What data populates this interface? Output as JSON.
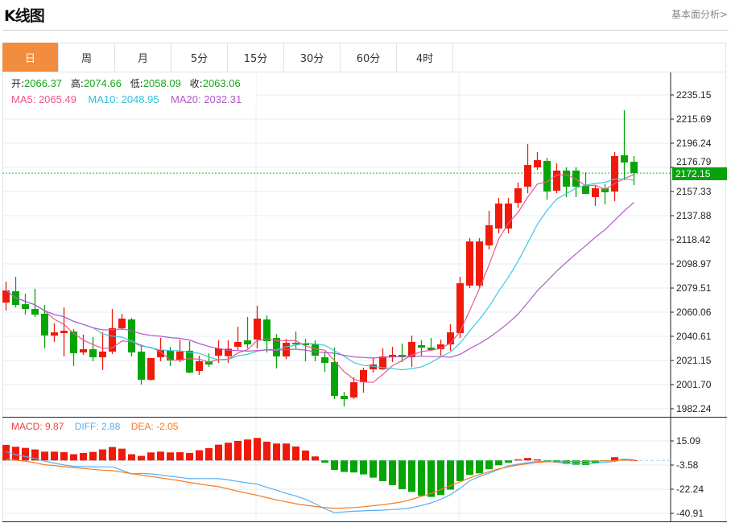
{
  "header": {
    "title": "K线图",
    "link": "基本面分析>"
  },
  "tabs": [
    {
      "label": "日",
      "active": true
    },
    {
      "label": "周"
    },
    {
      "label": "月"
    },
    {
      "label": "5分"
    },
    {
      "label": "15分"
    },
    {
      "label": "30分"
    },
    {
      "label": "60分"
    },
    {
      "label": "4时"
    }
  ],
  "legend": {
    "open_label": "开:",
    "open": "2066.37",
    "high_label": "高:",
    "high": "2074.66",
    "low_label": "低:",
    "low": "2058.09",
    "close_label": "收:",
    "close": "2063.06",
    "ma5": "MA5: 2065.49",
    "ma10": "MA10: 2048.95",
    "ma20": "MA20: 2032.31"
  },
  "macd_legend": {
    "macd": "MACD: 9.87",
    "diff": "DIFF: 2.88",
    "dea": "DEA: -2.05"
  },
  "colors": {
    "up": "#f01a0a",
    "down": "#06a506",
    "ma5": "#f0578a",
    "ma10": "#3cc8de",
    "ma20": "#b25ac8",
    "diff": "#5aaef0",
    "dea": "#f57a1e",
    "accent": "#f28c3e"
  },
  "chart_data": {
    "type": "candlestick",
    "price_ticks": [
      "2235.15",
      "2215.69",
      "2196.24",
      "2176.79",
      "2157.33",
      "2137.88",
      "2118.42",
      "2098.97",
      "2079.51",
      "2060.06",
      "2040.61",
      "2021.15",
      "2001.70",
      "1982.24"
    ],
    "current_price": "2172.15",
    "macd_ticks": [
      "15.09",
      "-3.58",
      "-22.24",
      "-40.91"
    ],
    "ohlc": [
      [
        2067.8,
        2084.7,
        2061.4,
        2077.6
      ],
      [
        2076.9,
        2088.6,
        2063.9,
        2065.9
      ],
      [
        2066.5,
        2075.0,
        2058.1,
        2062.6
      ],
      [
        2062.6,
        2078.9,
        2056.2,
        2058.1
      ],
      [
        2058.8,
        2065.9,
        2030.9,
        2041.3
      ],
      [
        2041.2,
        2051.0,
        2036.1,
        2043.8
      ],
      [
        2043.2,
        2063.9,
        2024.4,
        2045.1
      ],
      [
        2044.5,
        2046.4,
        2016.6,
        2027.0
      ],
      [
        2027.6,
        2041.9,
        2025.7,
        2030.2
      ],
      [
        2030.2,
        2040.0,
        2020.5,
        2023.7
      ],
      [
        2023.7,
        2043.8,
        2013.4,
        2028.3
      ],
      [
        2028.3,
        2062.6,
        2026.3,
        2047.1
      ],
      [
        2047.1,
        2058.8,
        2045.8,
        2054.9
      ],
      [
        2054.2,
        2055.5,
        2024.4,
        2027.6
      ],
      [
        2028.3,
        2034.1,
        2001.7,
        2005.6
      ],
      [
        2005.6,
        2023.1,
        2005.0,
        2023.1
      ],
      [
        2023.7,
        2039.3,
        2020.5,
        2029.6
      ],
      [
        2029.0,
        2032.2,
        2016.6,
        2021.1
      ],
      [
        2021.1,
        2038.0,
        2019.8,
        2028.3
      ],
      [
        2029.0,
        2036.7,
        2010.8,
        2011.4
      ],
      [
        2012.7,
        2025.0,
        2009.5,
        2020.5
      ],
      [
        2020.5,
        2026.9,
        2016.0,
        2017.9
      ],
      [
        2025.0,
        2037.4,
        2019.1,
        2030.9
      ],
      [
        2024.6,
        2037.4,
        2019.1,
        2030.6
      ],
      [
        2032.2,
        2048.4,
        2029.6,
        2036.1
      ],
      [
        2037.4,
        2056.2,
        2030.9,
        2034.1
      ],
      [
        2038.0,
        2065.2,
        2030.9,
        2054.9
      ],
      [
        2054.2,
        2057.5,
        2027.6,
        2036.7
      ],
      [
        2039.3,
        2042.5,
        2014.7,
        2024.4
      ],
      [
        2024.4,
        2038.6,
        2022.4,
        2035.4
      ],
      [
        2035.4,
        2044.5,
        2030.9,
        2034.1
      ],
      [
        2034.8,
        2038.6,
        2020.5,
        2033.5
      ],
      [
        2034.1,
        2037.4,
        2020.5,
        2025.0
      ],
      [
        2023.7,
        2028.3,
        2012.0,
        2019.2
      ],
      [
        2019.8,
        2031.5,
        1990.0,
        1992.6
      ],
      [
        1992.6,
        1995.8,
        1984.2,
        1990.0
      ],
      [
        1991.3,
        2007.6,
        1990.0,
        2003.6
      ],
      [
        2003.6,
        2015.3,
        1995.2,
        2013.4
      ],
      [
        2014.0,
        2023.1,
        2011.4,
        2017.9
      ],
      [
        2014.0,
        2030.9,
        2013.4,
        2024.4
      ],
      [
        2023.7,
        2032.2,
        2019.8,
        2025.7
      ],
      [
        2025.7,
        2034.8,
        2019.8,
        2023.7
      ],
      [
        2023.7,
        2041.2,
        2016.0,
        2036.1
      ],
      [
        2033.5,
        2037.4,
        2025.0,
        2031.5
      ],
      [
        2031.5,
        2039.3,
        2028.9,
        2029.6
      ],
      [
        2030.2,
        2038.0,
        2025.0,
        2034.1
      ],
      [
        2034.1,
        2050.3,
        2029.0,
        2043.8
      ],
      [
        2043.2,
        2088.6,
        2039.3,
        2083.4
      ],
      [
        2081.5,
        2119.7,
        2079.5,
        2117.1
      ],
      [
        2081.5,
        2119.7,
        2079.5,
        2117.1
      ],
      [
        2113.9,
        2141.8,
        2110.6,
        2130.1
      ],
      [
        2127.5,
        2152.1,
        2123.6,
        2147.6
      ],
      [
        2127.5,
        2152.1,
        2123.6,
        2147.6
      ],
      [
        2148.2,
        2164.5,
        2144.3,
        2159.9
      ],
      [
        2161.2,
        2195.6,
        2156.0,
        2178.7
      ],
      [
        2176.8,
        2189.1,
        2174.8,
        2182.6
      ],
      [
        2182.0,
        2184.6,
        2150.8,
        2157.3
      ],
      [
        2158.0,
        2180.0,
        2156.0,
        2174.2
      ],
      [
        2174.2,
        2176.8,
        2152.8,
        2161.2
      ],
      [
        2174.2,
        2176.8,
        2152.8,
        2161.2
      ],
      [
        2161.8,
        2172.9,
        2155.4,
        2155.4
      ],
      [
        2152.8,
        2162.5,
        2145.7,
        2159.9
      ],
      [
        2159.9,
        2163.2,
        2147.0,
        2156.7
      ],
      [
        2157.3,
        2189.1,
        2149.5,
        2185.9
      ],
      [
        2186.5,
        2222.8,
        2166.4,
        2180.7
      ],
      [
        2181.3,
        2185.9,
        2162.5,
        2172.15
      ]
    ],
    "macd": [
      12.0,
      10.6,
      9.7,
      8.5,
      6.8,
      6.8,
      6.4,
      4.8,
      5.8,
      6.6,
      8.5,
      10.4,
      9.1,
      4.8,
      3.5,
      6.2,
      6.8,
      6.2,
      6.4,
      5.8,
      7.9,
      9.5,
      12.2,
      13.7,
      15.1,
      16.2,
      17.4,
      14.5,
      13.1,
      13.1,
      10.8,
      7.7,
      3.1,
      -1.7,
      -7.3,
      -8.9,
      -9.3,
      -10.8,
      -13.3,
      -16.0,
      -19.1,
      -22.2,
      -24.3,
      -27.4,
      -28.2,
      -26.8,
      -22.6,
      -16.0,
      -11.2,
      -10.0,
      -6.8,
      -3.7,
      -1.7,
      0.8,
      1.9,
      0.8,
      -1.2,
      -1.2,
      -2.7,
      -3.3,
      -3.5,
      -2.1,
      -0.6,
      2.5,
      1.2,
      0.3
    ],
    "diff": [
      6.6,
      4.5,
      3.0,
      1.5,
      -0.6,
      -2.0,
      -3.5,
      -4.6,
      -4.8,
      -4.9,
      -5.0,
      -5.0,
      -7.5,
      -10.4,
      -10.0,
      -10.4,
      -11.3,
      -12.2,
      -13.1,
      -14.1,
      -14.0,
      -14.0,
      -14.1,
      -15.0,
      -16.2,
      -17.3,
      -18.3,
      -20.8,
      -23.0,
      -25.5,
      -27.5,
      -30.0,
      -33.5,
      -37.5,
      -40.4,
      -39.8,
      -39.3,
      -39.0,
      -38.7,
      -38.4,
      -38.0,
      -37.5,
      -36.5,
      -34.8,
      -32.8,
      -30.0,
      -26.5,
      -21.5,
      -15.8,
      -12.5,
      -9.8,
      -7.0,
      -4.1,
      -2.8,
      -1.7,
      -0.8,
      -0.6,
      -1.5,
      -2.1,
      -2.3,
      -2.5,
      -2.0,
      -1.5,
      -0.8,
      1.0,
      0.5
    ],
    "dea": [
      1.0,
      0.2,
      -0.6,
      -1.8,
      -3.3,
      -4.0,
      -4.8,
      -5.5,
      -6.2,
      -6.9,
      -7.5,
      -7.9,
      -9.0,
      -10.2,
      -11.3,
      -12.4,
      -13.5,
      -14.6,
      -15.7,
      -17.0,
      -18.2,
      -19.3,
      -20.3,
      -22.0,
      -23.8,
      -25.4,
      -27.0,
      -28.8,
      -30.5,
      -32.0,
      -33.5,
      -34.6,
      -35.6,
      -36.5,
      -36.9,
      -36.8,
      -36.4,
      -35.8,
      -35.0,
      -34.2,
      -33.2,
      -32.0,
      -30.0,
      -27.8,
      -25.5,
      -22.5,
      -19.5,
      -16.5,
      -13.5,
      -11.0,
      -8.7,
      -6.5,
      -5.0,
      -3.5,
      -2.5,
      -1.5,
      -1.0,
      -1.0,
      -0.9,
      -0.8,
      -0.8,
      -0.6,
      -0.4,
      -0.1,
      0.4,
      0.2
    ],
    "price_range": [
      1982.24,
      2235.15
    ],
    "macd_range": [
      -40.91,
      15.09
    ],
    "grid": true
  }
}
